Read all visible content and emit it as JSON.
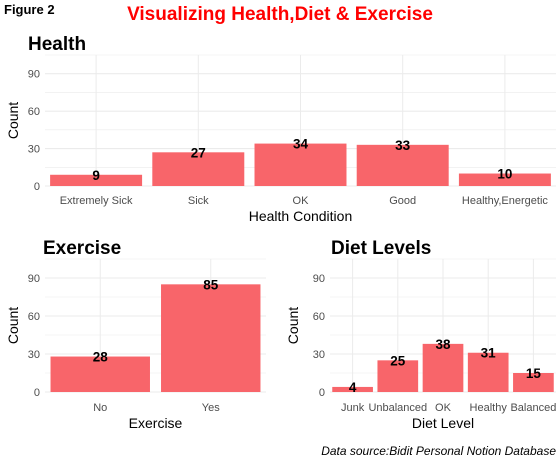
{
  "figure_label": "Figure 2",
  "main_title": "Visualizing Health,Diet & Exercise",
  "caption": "Data source:Bidit Personal Notion Database",
  "colors": {
    "bar": "#f8656a",
    "title": "#ff0000",
    "grid": "#ebebeb"
  },
  "chart_data": [
    {
      "type": "bar",
      "title": "Health",
      "xlabel": "Health Condition",
      "ylabel": "Count",
      "categories": [
        "Extremely Sick",
        "Sick",
        "OK",
        "Good",
        "Healthy,Energetic"
      ],
      "values": [
        9,
        27,
        34,
        33,
        10
      ],
      "ylim": [
        0,
        105
      ],
      "yticks": [
        0,
        30,
        60,
        90
      ],
      "grid": true
    },
    {
      "type": "bar",
      "title": "Exercise",
      "xlabel": "Exercise",
      "ylabel": "Count",
      "categories": [
        "No",
        "Yes"
      ],
      "values": [
        28,
        85
      ],
      "ylim": [
        0,
        105
      ],
      "yticks": [
        0,
        30,
        60,
        90
      ],
      "grid": true
    },
    {
      "type": "bar",
      "title": "Diet Levels",
      "xlabel": "Diet Level",
      "ylabel": "Count",
      "categories": [
        "Junk",
        "Unbalanced",
        "OK",
        "Healthy",
        "Balanced"
      ],
      "values": [
        4,
        25,
        38,
        31,
        15
      ],
      "ylim": [
        0,
        105
      ],
      "yticks": [
        0,
        30,
        60,
        90
      ],
      "grid": true
    }
  ]
}
